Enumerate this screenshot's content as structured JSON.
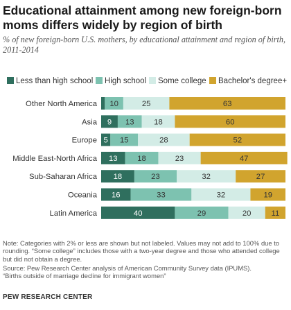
{
  "title": "Educational attainment among new foreign-born moms differs widely by region of birth",
  "subtitle": "% of new foreign-born U.S. mothers, by educational attainment and region of birth, 2011-2014",
  "note": "Note: Categories with 2% or less are shown but not labeled. Values may not add to 100% due to rounding. “Some college” includes those with a two-year degree and those who attended college but did not obtain a degree.",
  "source_line1": "Source: Pew Research Center analysis of American Community Survey data (IPUMS).",
  "source_line2": "“Births outside of marriage decline for immigrant women”",
  "brand": "PEW RESEARCH CENTER",
  "chart_data": {
    "type": "bar",
    "orientation": "horizontal",
    "stacked": true,
    "categories": [
      "Other North America",
      "Asia",
      "Europe",
      "Middle East-North Africa",
      "Sub-Saharan Africa",
      "Oceania",
      "Latin America"
    ],
    "series": [
      {
        "name": "Less than high school",
        "color": "#2f6f5e",
        "label_color": "#ffffff",
        "values": [
          2,
          9,
          5,
          13,
          18,
          16,
          40
        ]
      },
      {
        "name": "High school",
        "color": "#7dc2b0",
        "label_color": "#333333",
        "values": [
          10,
          13,
          15,
          18,
          23,
          33,
          29
        ]
      },
      {
        "name": "Some college",
        "color": "#d3ece6",
        "label_color": "#333333",
        "values": [
          25,
          18,
          28,
          23,
          32,
          32,
          20
        ]
      },
      {
        "name": "Bachelor's degree+",
        "color": "#d1a42e",
        "label_color": "#333333",
        "values": [
          63,
          60,
          52,
          47,
          27,
          19,
          11
        ]
      }
    ],
    "label_threshold": 2,
    "xlim": [
      0,
      100
    ],
    "legend_position": "top",
    "grid": false
  }
}
